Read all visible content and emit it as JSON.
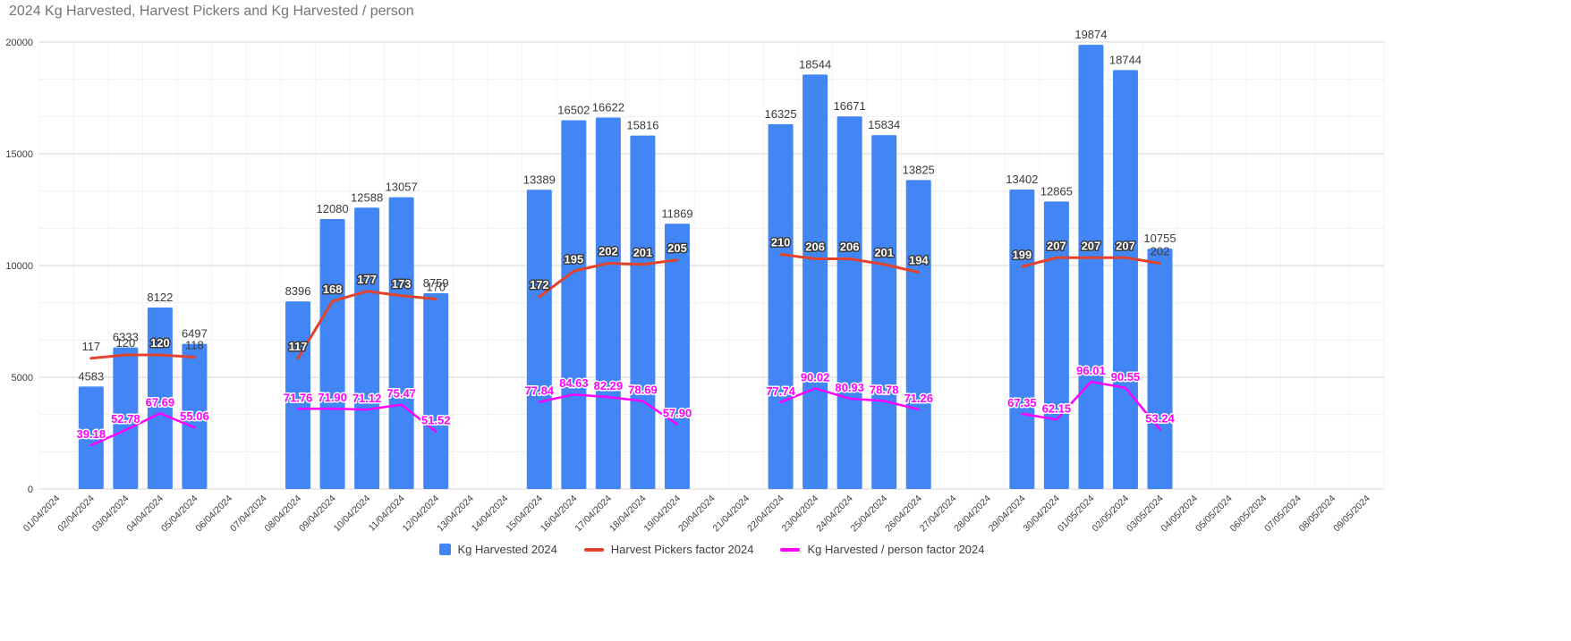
{
  "title": "2024 Kg Harvested, Harvest Pickers and Kg Harvested / person",
  "colors": {
    "bar": "#4285F4",
    "pickers_line": "#E2432D",
    "per_person_line": "#FF00FF",
    "title_text": "#757575",
    "axis_text": "#3C3C3C",
    "major_gridline": "#D6D6D6",
    "minor_gridline": "#F0F0F0",
    "slot_gridline": "#F4F4F4",
    "background": "#FFFFFF"
  },
  "legend": {
    "items": [
      {
        "label": "Kg Harvested 2024",
        "swatch": "square",
        "color": "#4285F4"
      },
      {
        "label": "Harvest Pickers factor 2024",
        "swatch": "line",
        "color": "#E2432D"
      },
      {
        "label": "Kg Harvested / person factor 2024",
        "swatch": "line",
        "color": "#FF00FF"
      }
    ]
  },
  "chart_data": {
    "type": "bar",
    "title": "2024 Kg Harvested, Harvest Pickers and Kg Harvested / person",
    "legend_position": "bottom",
    "grid": {
      "major": true,
      "minor": true
    },
    "left_axis": {
      "min": 0,
      "max": 20000,
      "tick_interval": 5000,
      "ticks": [
        0,
        5000,
        10000,
        15000,
        20000
      ]
    },
    "hidden_right_axis": {
      "min": 0,
      "max": 400
    },
    "categories": [
      "01/04/2024",
      "02/04/2024",
      "03/04/2024",
      "04/04/2024",
      "05/04/2024",
      "06/04/2024",
      "07/04/2024",
      "08/04/2024",
      "09/04/2024",
      "10/04/2024",
      "11/04/2024",
      "12/04/2024",
      "13/04/2024",
      "14/04/2024",
      "15/04/2024",
      "16/04/2024",
      "17/04/2024",
      "18/04/2024",
      "19/04/2024",
      "20/04/2024",
      "21/04/2024",
      "22/04/2024",
      "23/04/2024",
      "24/04/2024",
      "25/04/2024",
      "26/04/2024",
      "27/04/2024",
      "28/04/2024",
      "29/04/2024",
      "30/04/2024",
      "01/05/2024",
      "02/05/2024",
      "03/05/2024",
      "04/05/2024",
      "05/05/2024",
      "06/05/2024",
      "07/05/2024",
      "08/05/2024",
      "09/05/2024"
    ],
    "series": [
      {
        "name": "Kg Harvested 2024",
        "type": "bar",
        "axis": "left",
        "color": "#4285F4",
        "values": [
          null,
          4583,
          6333,
          8122,
          6497,
          null,
          null,
          8396,
          12080,
          12588,
          13057,
          8759,
          null,
          null,
          13389,
          16502,
          16622,
          15816,
          11869,
          null,
          null,
          16325,
          18544,
          16671,
          15834,
          13825,
          null,
          null,
          13402,
          12865,
          19874,
          18744,
          10755,
          null,
          null,
          null,
          null,
          null,
          null
        ]
      },
      {
        "name": "Harvest Pickers factor 2024",
        "type": "line",
        "axis": "hidden_right",
        "color": "#E2432D",
        "values": [
          null,
          117,
          120,
          120,
          118,
          null,
          null,
          117,
          168,
          177,
          173,
          170,
          null,
          null,
          172,
          195,
          202,
          201,
          205,
          null,
          null,
          210,
          206,
          206,
          201,
          194,
          null,
          null,
          199,
          207,
          207,
          207,
          202,
          null,
          null,
          null,
          null,
          null,
          null
        ]
      },
      {
        "name": "Kg Harvested / person factor 2024",
        "type": "line",
        "axis": "hidden_right",
        "color": "#FF00FF",
        "values": [
          null,
          39.18,
          52.78,
          67.69,
          55.06,
          null,
          null,
          71.76,
          71.9,
          71.12,
          75.47,
          51.52,
          null,
          null,
          77.84,
          84.63,
          82.29,
          78.69,
          57.9,
          null,
          null,
          77.74,
          90.02,
          80.93,
          78.78,
          71.26,
          null,
          null,
          67.35,
          62.15,
          96.01,
          90.55,
          53.24,
          null,
          null,
          null,
          null,
          null,
          null
        ]
      }
    ]
  }
}
